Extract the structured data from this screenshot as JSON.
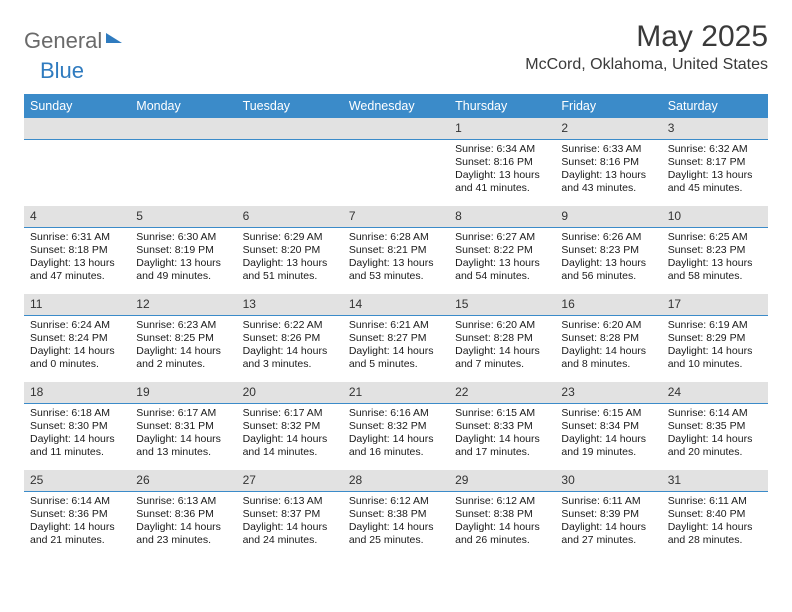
{
  "logo": {
    "text1": "General",
    "text2": "Blue"
  },
  "title": "May 2025",
  "location": "McCord, Oklahoma, United States",
  "colors": {
    "header_bg": "#3b8bc9",
    "header_fg": "#ffffff",
    "daynum_bg": "#e2e2e2",
    "rule": "#3b8bc9",
    "logo_gray": "#6a6a6a",
    "logo_blue": "#2f7bbf",
    "page_bg": "#ffffff",
    "text": "#1a1a1a"
  },
  "day_headers": [
    "Sunday",
    "Monday",
    "Tuesday",
    "Wednesday",
    "Thursday",
    "Friday",
    "Saturday"
  ],
  "weeks": [
    [
      null,
      null,
      null,
      null,
      {
        "n": "1",
        "sr": "6:34 AM",
        "ss": "8:16 PM",
        "dl": "13 hours and 41 minutes."
      },
      {
        "n": "2",
        "sr": "6:33 AM",
        "ss": "8:16 PM",
        "dl": "13 hours and 43 minutes."
      },
      {
        "n": "3",
        "sr": "6:32 AM",
        "ss": "8:17 PM",
        "dl": "13 hours and 45 minutes."
      }
    ],
    [
      {
        "n": "4",
        "sr": "6:31 AM",
        "ss": "8:18 PM",
        "dl": "13 hours and 47 minutes."
      },
      {
        "n": "5",
        "sr": "6:30 AM",
        "ss": "8:19 PM",
        "dl": "13 hours and 49 minutes."
      },
      {
        "n": "6",
        "sr": "6:29 AM",
        "ss": "8:20 PM",
        "dl": "13 hours and 51 minutes."
      },
      {
        "n": "7",
        "sr": "6:28 AM",
        "ss": "8:21 PM",
        "dl": "13 hours and 53 minutes."
      },
      {
        "n": "8",
        "sr": "6:27 AM",
        "ss": "8:22 PM",
        "dl": "13 hours and 54 minutes."
      },
      {
        "n": "9",
        "sr": "6:26 AM",
        "ss": "8:23 PM",
        "dl": "13 hours and 56 minutes."
      },
      {
        "n": "10",
        "sr": "6:25 AM",
        "ss": "8:23 PM",
        "dl": "13 hours and 58 minutes."
      }
    ],
    [
      {
        "n": "11",
        "sr": "6:24 AM",
        "ss": "8:24 PM",
        "dl": "14 hours and 0 minutes."
      },
      {
        "n": "12",
        "sr": "6:23 AM",
        "ss": "8:25 PM",
        "dl": "14 hours and 2 minutes."
      },
      {
        "n": "13",
        "sr": "6:22 AM",
        "ss": "8:26 PM",
        "dl": "14 hours and 3 minutes."
      },
      {
        "n": "14",
        "sr": "6:21 AM",
        "ss": "8:27 PM",
        "dl": "14 hours and 5 minutes."
      },
      {
        "n": "15",
        "sr": "6:20 AM",
        "ss": "8:28 PM",
        "dl": "14 hours and 7 minutes."
      },
      {
        "n": "16",
        "sr": "6:20 AM",
        "ss": "8:28 PM",
        "dl": "14 hours and 8 minutes."
      },
      {
        "n": "17",
        "sr": "6:19 AM",
        "ss": "8:29 PM",
        "dl": "14 hours and 10 minutes."
      }
    ],
    [
      {
        "n": "18",
        "sr": "6:18 AM",
        "ss": "8:30 PM",
        "dl": "14 hours and 11 minutes."
      },
      {
        "n": "19",
        "sr": "6:17 AM",
        "ss": "8:31 PM",
        "dl": "14 hours and 13 minutes."
      },
      {
        "n": "20",
        "sr": "6:17 AM",
        "ss": "8:32 PM",
        "dl": "14 hours and 14 minutes."
      },
      {
        "n": "21",
        "sr": "6:16 AM",
        "ss": "8:32 PM",
        "dl": "14 hours and 16 minutes."
      },
      {
        "n": "22",
        "sr": "6:15 AM",
        "ss": "8:33 PM",
        "dl": "14 hours and 17 minutes."
      },
      {
        "n": "23",
        "sr": "6:15 AM",
        "ss": "8:34 PM",
        "dl": "14 hours and 19 minutes."
      },
      {
        "n": "24",
        "sr": "6:14 AM",
        "ss": "8:35 PM",
        "dl": "14 hours and 20 minutes."
      }
    ],
    [
      {
        "n": "25",
        "sr": "6:14 AM",
        "ss": "8:36 PM",
        "dl": "14 hours and 21 minutes."
      },
      {
        "n": "26",
        "sr": "6:13 AM",
        "ss": "8:36 PM",
        "dl": "14 hours and 23 minutes."
      },
      {
        "n": "27",
        "sr": "6:13 AM",
        "ss": "8:37 PM",
        "dl": "14 hours and 24 minutes."
      },
      {
        "n": "28",
        "sr": "6:12 AM",
        "ss": "8:38 PM",
        "dl": "14 hours and 25 minutes."
      },
      {
        "n": "29",
        "sr": "6:12 AM",
        "ss": "8:38 PM",
        "dl": "14 hours and 26 minutes."
      },
      {
        "n": "30",
        "sr": "6:11 AM",
        "ss": "8:39 PM",
        "dl": "14 hours and 27 minutes."
      },
      {
        "n": "31",
        "sr": "6:11 AM",
        "ss": "8:40 PM",
        "dl": "14 hours and 28 minutes."
      }
    ]
  ],
  "labels": {
    "sunrise": "Sunrise: ",
    "sunset": "Sunset: ",
    "daylight": "Daylight: "
  }
}
